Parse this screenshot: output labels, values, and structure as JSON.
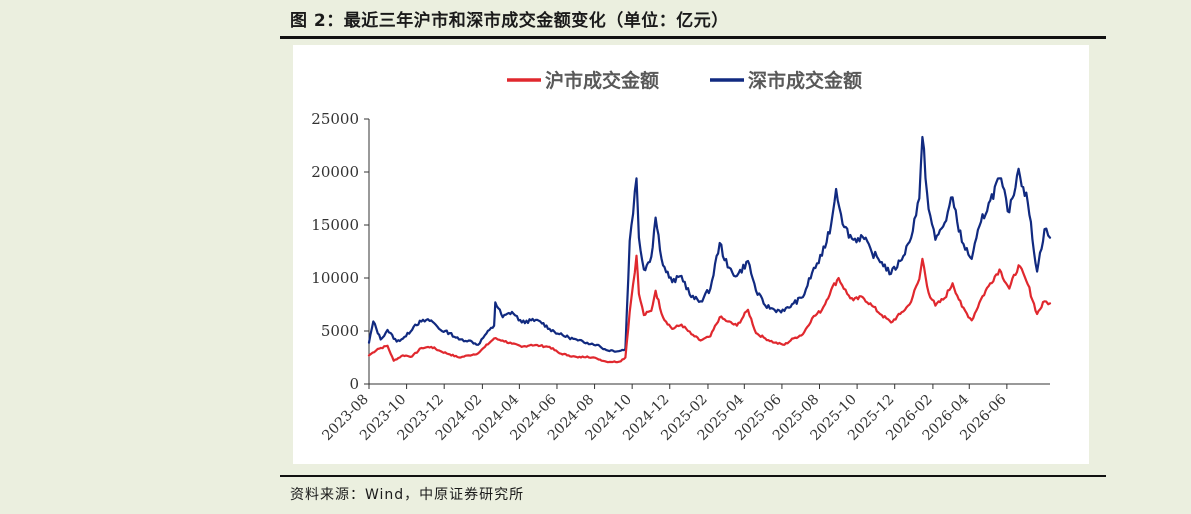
{
  "figure": {
    "title": "图 2：最近三年沪市和深市成交金额变化（单位：亿元）",
    "source": "资料来源：Wind，中原证券研究所"
  },
  "chart_data": {
    "type": "line",
    "legend_position": "top-center",
    "grid": false,
    "ylim": [
      0,
      25000
    ],
    "y_ticks": [
      "0",
      "5000",
      "10000",
      "15000",
      "20000",
      "25000"
    ],
    "x_ticks": [
      "2023-08",
      "2023-10",
      "2023-12",
      "2024-02",
      "2024-04",
      "2024-06",
      "2024-08",
      "2024-10",
      "2024-12",
      "2025-02",
      "2025-04",
      "2025-06",
      "2025-08",
      "2025-10",
      "2025-12",
      "2026-02",
      "2026-04",
      "2026-06"
    ],
    "x_range": [
      "2023-08-01",
      "2026-08-10"
    ],
    "series": [
      {
        "name": "沪市成交金额",
        "color": "#e0282e",
        "points": [
          [
            "2023-08-01",
            2700
          ],
          [
            "2023-08-15",
            3300
          ],
          [
            "2023-08-31",
            3600
          ],
          [
            "2023-09-10",
            2200
          ],
          [
            "2023-09-25",
            2700
          ],
          [
            "2023-10-10",
            2600
          ],
          [
            "2023-10-25",
            3400
          ],
          [
            "2023-11-10",
            3500
          ],
          [
            "2023-11-25",
            3100
          ],
          [
            "2023-12-10",
            2800
          ],
          [
            "2023-12-25",
            2500
          ],
          [
            "2024-01-10",
            2700
          ],
          [
            "2024-01-25",
            2900
          ],
          [
            "2024-02-05",
            3500
          ],
          [
            "2024-02-20",
            4300
          ],
          [
            "2024-03-05",
            4100
          ],
          [
            "2024-03-20",
            3800
          ],
          [
            "2024-04-05",
            3500
          ],
          [
            "2024-04-20",
            3700
          ],
          [
            "2024-05-05",
            3600
          ],
          [
            "2024-05-20",
            3500
          ],
          [
            "2024-06-05",
            2900
          ],
          [
            "2024-06-20",
            2700
          ],
          [
            "2024-07-05",
            2500
          ],
          [
            "2024-07-20",
            2600
          ],
          [
            "2024-08-05",
            2400
          ],
          [
            "2024-08-20",
            2100
          ],
          [
            "2024-09-10",
            2100
          ],
          [
            "2024-09-20",
            2500
          ],
          [
            "2024-09-27",
            6800
          ],
          [
            "2024-10-08",
            12100
          ],
          [
            "2024-10-12",
            8500
          ],
          [
            "2024-10-20",
            6500
          ],
          [
            "2024-11-01",
            6900
          ],
          [
            "2024-11-08",
            8800
          ],
          [
            "2024-11-20",
            6300
          ],
          [
            "2024-12-05",
            5200
          ],
          [
            "2024-12-20",
            5600
          ],
          [
            "2025-01-05",
            4700
          ],
          [
            "2025-01-20",
            4100
          ],
          [
            "2025-02-05",
            4500
          ],
          [
            "2025-02-20",
            6300
          ],
          [
            "2025-03-05",
            5900
          ],
          [
            "2025-03-20",
            5500
          ],
          [
            "2025-04-07",
            7000
          ],
          [
            "2025-04-20",
            4800
          ],
          [
            "2025-05-05",
            4300
          ],
          [
            "2025-05-20",
            3900
          ],
          [
            "2025-06-05",
            3700
          ],
          [
            "2025-06-20",
            4300
          ],
          [
            "2025-07-05",
            4700
          ],
          [
            "2025-07-20",
            6200
          ],
          [
            "2025-08-05",
            7000
          ],
          [
            "2025-08-20",
            8900
          ],
          [
            "2025-09-01",
            10000
          ],
          [
            "2025-09-15",
            8500
          ],
          [
            "2025-09-25",
            7900
          ],
          [
            "2025-10-10",
            8200
          ],
          [
            "2025-10-25",
            7400
          ],
          [
            "2025-11-10",
            6500
          ],
          [
            "2025-11-25",
            5800
          ],
          [
            "2025-12-10",
            6600
          ],
          [
            "2025-12-25",
            7500
          ],
          [
            "2026-01-10",
            9900
          ],
          [
            "2026-01-15",
            11800
          ],
          [
            "2026-01-25",
            8600
          ],
          [
            "2026-02-05",
            7400
          ],
          [
            "2026-02-20",
            8100
          ],
          [
            "2026-03-05",
            9500
          ],
          [
            "2026-03-20",
            7300
          ],
          [
            "2026-04-05",
            6000
          ],
          [
            "2026-04-20",
            8000
          ],
          [
            "2026-05-05",
            9500
          ],
          [
            "2026-05-20",
            10800
          ],
          [
            "2026-06-05",
            9000
          ],
          [
            "2026-06-20",
            11200
          ],
          [
            "2026-07-05",
            9400
          ],
          [
            "2026-07-20",
            6600
          ],
          [
            "2026-08-01",
            7800
          ],
          [
            "2026-08-10",
            7600
          ]
        ]
      },
      {
        "name": "深市成交金额",
        "color": "#112a80",
        "points": [
          [
            "2023-08-01",
            3900
          ],
          [
            "2023-08-08",
            5900
          ],
          [
            "2023-08-20",
            4200
          ],
          [
            "2023-08-31",
            5100
          ],
          [
            "2023-09-15",
            4000
          ],
          [
            "2023-09-30",
            4500
          ],
          [
            "2023-10-15",
            5600
          ],
          [
            "2023-10-25",
            5900
          ],
          [
            "2023-11-10",
            6000
          ],
          [
            "2023-11-25",
            5100
          ],
          [
            "2023-12-10",
            4800
          ],
          [
            "2023-12-25",
            4200
          ],
          [
            "2024-01-10",
            4100
          ],
          [
            "2024-01-25",
            3700
          ],
          [
            "2024-02-05",
            4600
          ],
          [
            "2024-02-20",
            5500
          ],
          [
            "2024-02-22",
            7700
          ],
          [
            "2024-03-05",
            6300
          ],
          [
            "2024-03-20",
            6800
          ],
          [
            "2024-04-05",
            5800
          ],
          [
            "2024-04-20",
            6000
          ],
          [
            "2024-05-05",
            5900
          ],
          [
            "2024-05-20",
            5200
          ],
          [
            "2024-06-05",
            4700
          ],
          [
            "2024-06-20",
            4400
          ],
          [
            "2024-07-05",
            4100
          ],
          [
            "2024-07-20",
            3900
          ],
          [
            "2024-08-05",
            3700
          ],
          [
            "2024-08-20",
            3200
          ],
          [
            "2024-09-10",
            3100
          ],
          [
            "2024-09-20",
            3300
          ],
          [
            "2024-09-27",
            13500
          ],
          [
            "2024-10-08",
            19400
          ],
          [
            "2024-10-12",
            13800
          ],
          [
            "2024-10-20",
            10800
          ],
          [
            "2024-11-01",
            12000
          ],
          [
            "2024-11-08",
            15700
          ],
          [
            "2024-11-20",
            11200
          ],
          [
            "2024-12-05",
            9600
          ],
          [
            "2024-12-20",
            10200
          ],
          [
            "2025-01-05",
            8200
          ],
          [
            "2025-01-20",
            7800
          ],
          [
            "2025-02-05",
            9000
          ],
          [
            "2025-02-20",
            13300
          ],
          [
            "2025-03-05",
            11000
          ],
          [
            "2025-03-20",
            10200
          ],
          [
            "2025-04-07",
            11600
          ],
          [
            "2025-04-20",
            8800
          ],
          [
            "2025-05-05",
            7400
          ],
          [
            "2025-05-20",
            7000
          ],
          [
            "2025-06-05",
            6900
          ],
          [
            "2025-06-20",
            7600
          ],
          [
            "2025-07-05",
            8200
          ],
          [
            "2025-07-20",
            10500
          ],
          [
            "2025-08-05",
            12100
          ],
          [
            "2025-08-20",
            15100
          ],
          [
            "2025-08-28",
            18400
          ],
          [
            "2025-09-10",
            14800
          ],
          [
            "2025-09-25",
            13600
          ],
          [
            "2025-10-10",
            13900
          ],
          [
            "2025-10-25",
            12400
          ],
          [
            "2025-11-10",
            11500
          ],
          [
            "2025-11-25",
            10400
          ],
          [
            "2025-12-10",
            11600
          ],
          [
            "2025-12-25",
            13400
          ],
          [
            "2026-01-10",
            17500
          ],
          [
            "2026-01-15",
            23300
          ],
          [
            "2026-01-25",
            16500
          ],
          [
            "2026-02-05",
            13600
          ],
          [
            "2026-02-20",
            15200
          ],
          [
            "2026-03-05",
            17600
          ],
          [
            "2026-03-20",
            13400
          ],
          [
            "2026-04-05",
            11800
          ],
          [
            "2026-04-20",
            15300
          ],
          [
            "2026-05-05",
            17300
          ],
          [
            "2026-05-20",
            19400
          ],
          [
            "2026-06-05",
            16200
          ],
          [
            "2026-06-20",
            20300
          ],
          [
            "2026-07-05",
            17100
          ],
          [
            "2026-07-20",
            10600
          ],
          [
            "2026-08-01",
            14600
          ],
          [
            "2026-08-10",
            13800
          ]
        ]
      }
    ]
  }
}
